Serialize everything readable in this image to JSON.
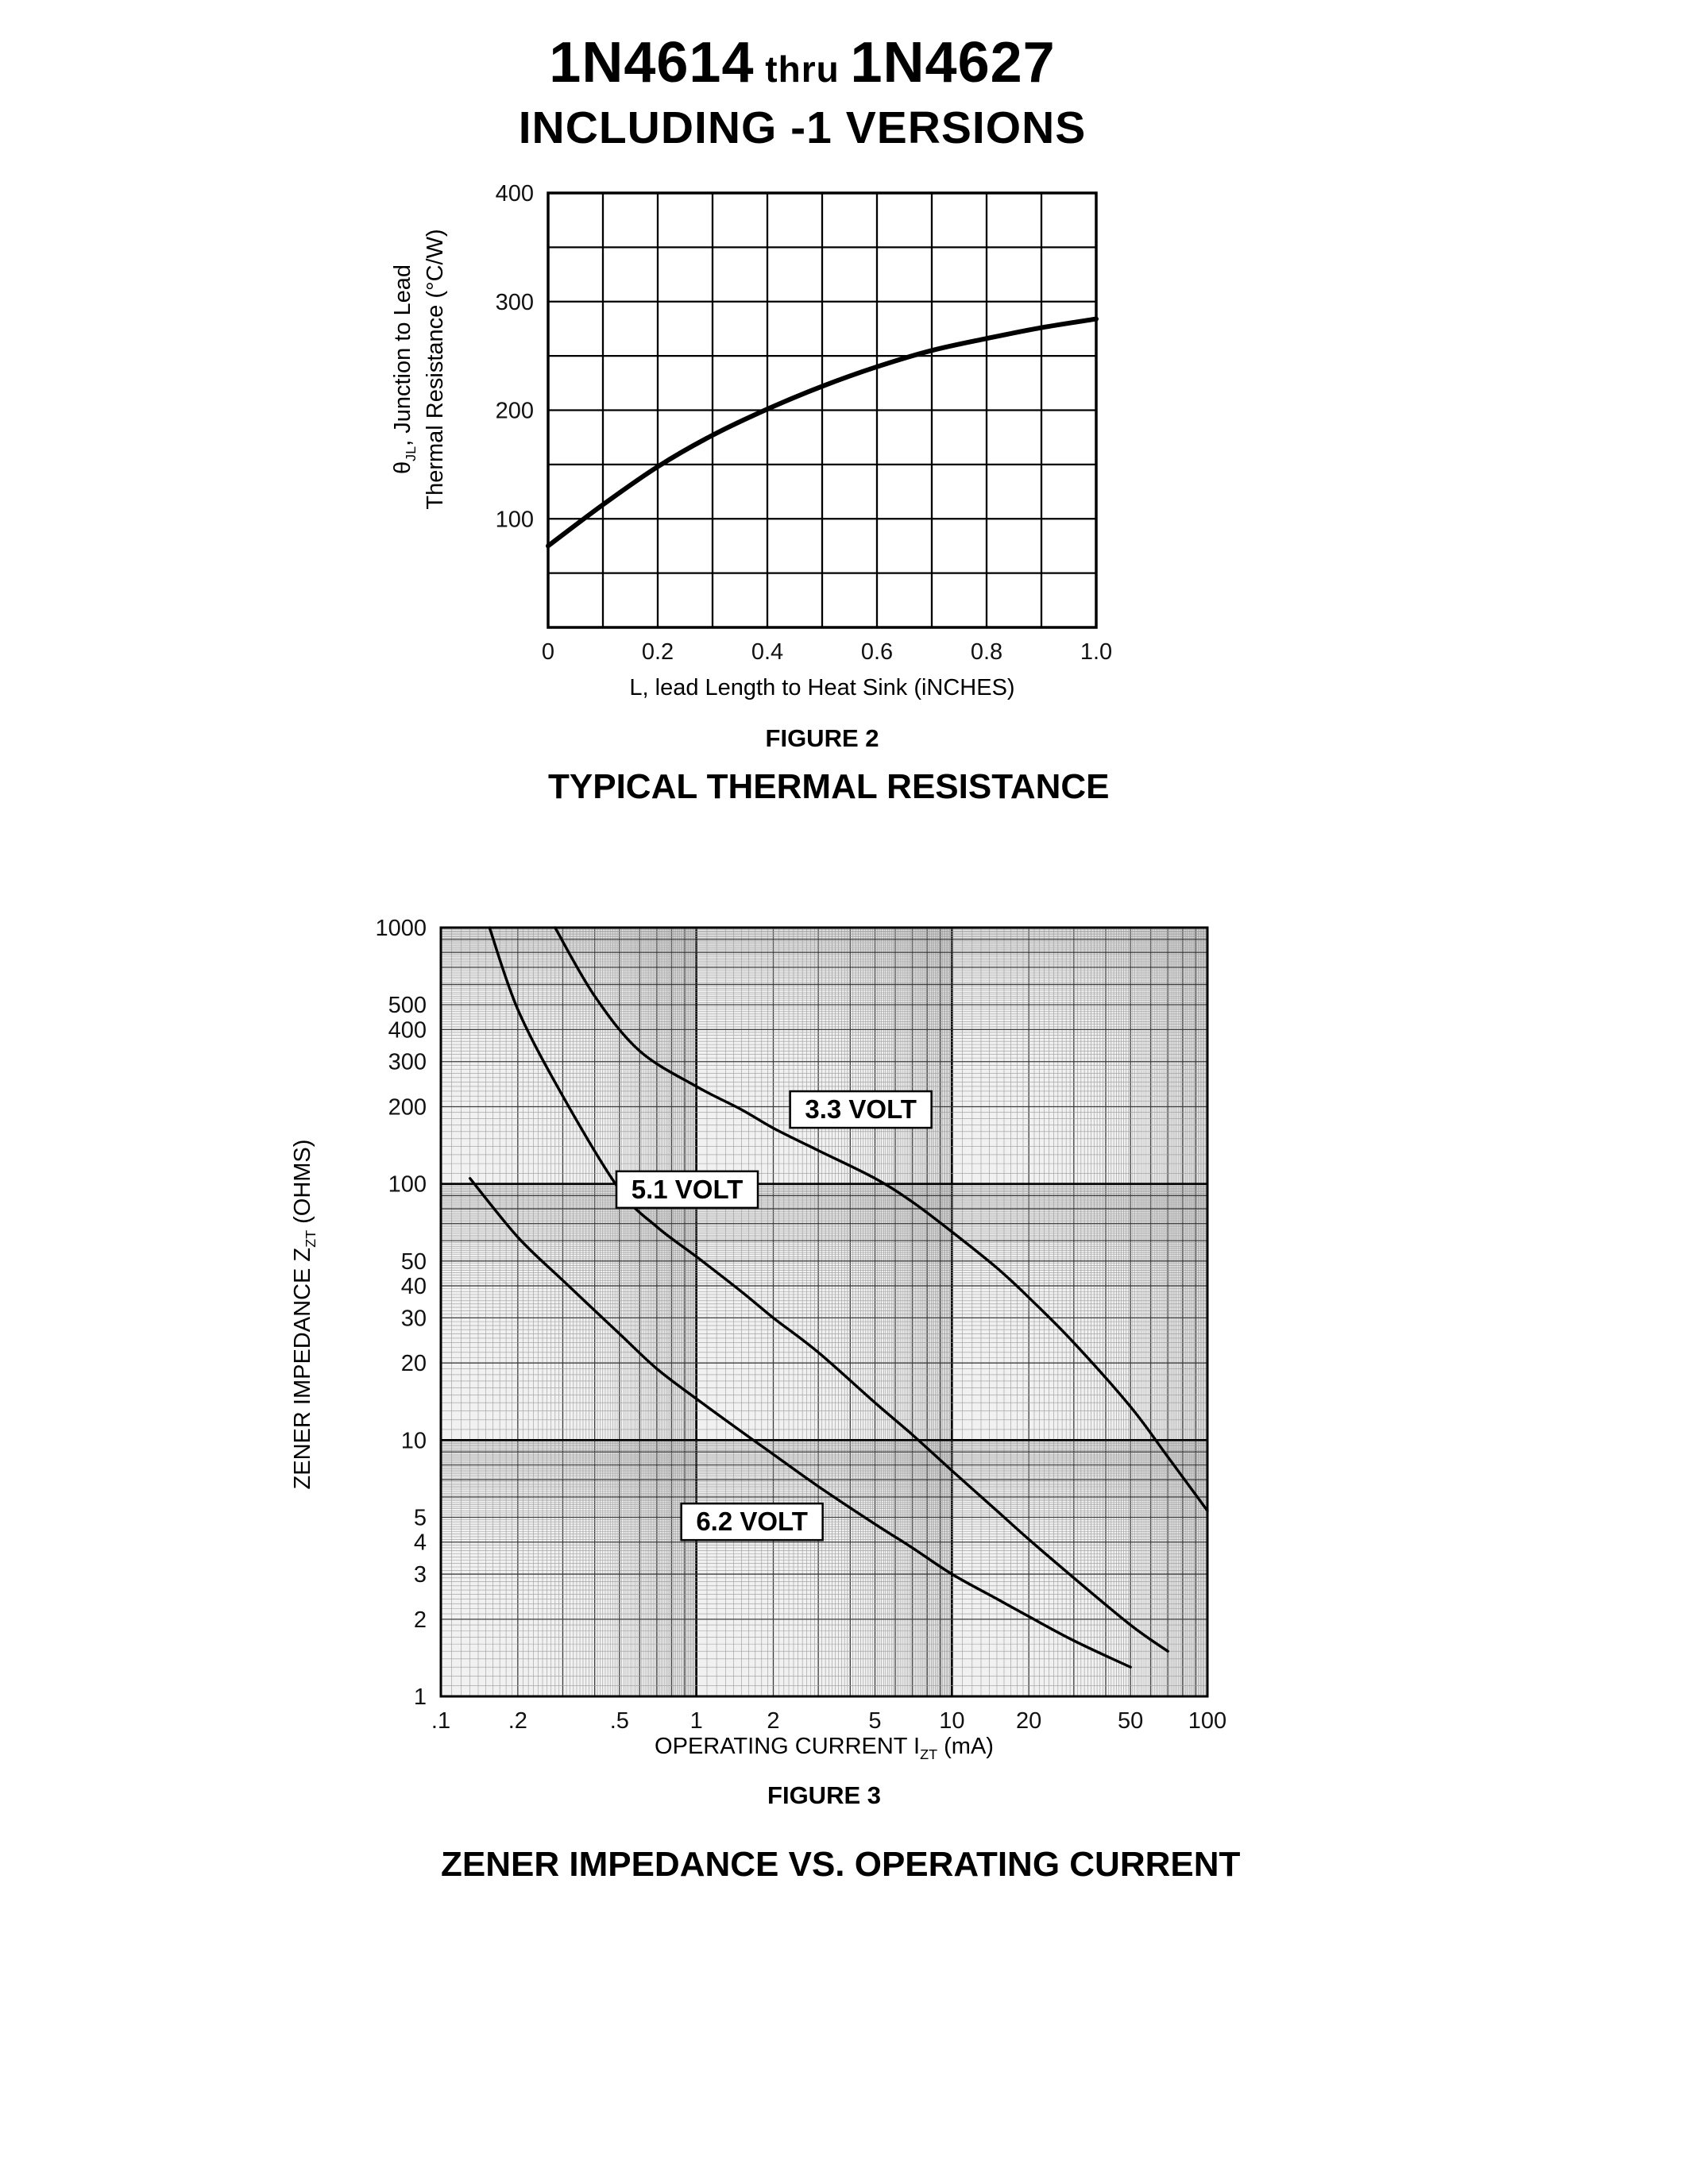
{
  "header": {
    "part_start": "1N4614",
    "thru": " thru ",
    "part_end": "1N4627",
    "subtitle": "INCLUDING -1 VERSIONS"
  },
  "chart_data": [
    {
      "type": "line",
      "figure_label": "FIGURE 2",
      "title": "TYPICAL THERMAL RESISTANCE",
      "xlabel": "L, lead Length to Heat Sink (iNCHES)",
      "ylabel_line1_pre": "θ",
      "ylabel_line1_sub": "JL",
      "ylabel_line1_post": ", Junction to Lead",
      "ylabel_line2": "Thermal Resistance (°C/W)",
      "xscale": "linear",
      "yscale": "linear",
      "xlim": [
        0,
        1.0
      ],
      "ylim": [
        0,
        400
      ],
      "x_grid_step": 0.1,
      "y_grid_step": 50,
      "grid": true,
      "legend": "none",
      "x_ticks": [
        {
          "v": 0,
          "label": "0"
        },
        {
          "v": 0.2,
          "label": "0.2"
        },
        {
          "v": 0.4,
          "label": "0.4"
        },
        {
          "v": 0.6,
          "label": "0.6"
        },
        {
          "v": 0.8,
          "label": "0.8"
        },
        {
          "v": 1.0,
          "label": "1.0"
        }
      ],
      "y_ticks": [
        {
          "v": 100,
          "label": "100"
        },
        {
          "v": 200,
          "label": "200"
        },
        {
          "v": 300,
          "label": "300"
        },
        {
          "v": 400,
          "label": "400"
        }
      ],
      "series": [
        {
          "name": "junction-to-lead-thermal-resistance",
          "x": [
            0,
            0.1,
            0.2,
            0.3,
            0.4,
            0.5,
            0.6,
            0.7,
            0.8,
            0.9,
            1.0
          ],
          "y": [
            75,
            113,
            148,
            177,
            201,
            222,
            240,
            255,
            266,
            276,
            284
          ]
        }
      ]
    },
    {
      "type": "line",
      "figure_label": "FIGURE 3",
      "title": "ZENER IMPEDANCE VS. OPERATING CURRENT",
      "xlabel_pre": "OPERATING CURRENT I",
      "xlabel_sub": "ZT",
      "xlabel_post": " (mA)",
      "ylabel_pre": "ZENER IMPEDANCE Z",
      "ylabel_sub": "ZT",
      "ylabel_post": " (OHMS)",
      "xscale": "log",
      "yscale": "log",
      "xlim": [
        0.1,
        100
      ],
      "ylim": [
        1,
        1000
      ],
      "grid": true,
      "legend": "inline-boxed-labels",
      "x_ticks": [
        {
          "v": 0.1,
          "label": ".1"
        },
        {
          "v": 0.2,
          "label": ".2"
        },
        {
          "v": 0.5,
          "label": ".5"
        },
        {
          "v": 1,
          "label": "1"
        },
        {
          "v": 2,
          "label": "2"
        },
        {
          "v": 5,
          "label": "5"
        },
        {
          "v": 10,
          "label": "10"
        },
        {
          "v": 20,
          "label": "20"
        },
        {
          "v": 50,
          "label": "50"
        },
        {
          "v": 100,
          "label": "100"
        }
      ],
      "y_ticks": [
        {
          "v": 1000,
          "label": "1000"
        },
        {
          "v": 500,
          "label": "500"
        },
        {
          "v": 400,
          "label": "400"
        },
        {
          "v": 300,
          "label": "300"
        },
        {
          "v": 200,
          "label": "200"
        },
        {
          "v": 100,
          "label": "100"
        },
        {
          "v": 50,
          "label": "50"
        },
        {
          "v": 40,
          "label": "40"
        },
        {
          "v": 30,
          "label": "30"
        },
        {
          "v": 20,
          "label": "20"
        },
        {
          "v": 10,
          "label": "10"
        },
        {
          "v": 5,
          "label": "5"
        },
        {
          "v": 4,
          "label": "4"
        },
        {
          "v": 3,
          "label": "3"
        },
        {
          "v": 2,
          "label": "2"
        },
        {
          "v": 1,
          "label": "1"
        }
      ],
      "series": [
        {
          "name": "3.3-volt",
          "label": "3.3 VOLT",
          "label_at": [
            4.4,
            195
          ],
          "x": [
            0.28,
            0.4,
            0.6,
            1,
            1.5,
            2,
            3,
            5,
            7,
            10,
            15,
            20,
            30,
            50,
            70,
            100
          ],
          "y": [
            1000,
            540,
            330,
            240,
            195,
            165,
            135,
            105,
            85,
            65,
            47,
            36,
            24,
            13.5,
            8.6,
            5.3
          ]
        },
        {
          "name": "5.1-volt",
          "label": "5.1 VOLT",
          "label_at": [
            0.92,
            95
          ],
          "x": [
            0.155,
            0.2,
            0.3,
            0.5,
            0.7,
            1,
            1.5,
            2,
            3,
            5,
            7,
            10,
            15,
            20,
            30,
            50,
            70
          ],
          "y": [
            1000,
            480,
            220,
            95,
            68,
            52,
            38,
            30,
            22,
            14,
            10.5,
            7.6,
            5.3,
            4.1,
            2.9,
            1.9,
            1.5
          ]
        },
        {
          "name": "6.2-volt",
          "label": "6.2 VOLT",
          "label_at": [
            1.65,
            4.8
          ],
          "x": [
            0.13,
            0.2,
            0.3,
            0.5,
            0.7,
            1,
            1.5,
            2,
            3,
            5,
            7,
            10,
            15,
            20,
            30,
            50
          ],
          "y": [
            105,
            62,
            42,
            26,
            19,
            14.5,
            10.8,
            8.8,
            6.6,
            4.7,
            3.8,
            3.0,
            2.4,
            2.05,
            1.65,
            1.3
          ]
        }
      ]
    }
  ]
}
